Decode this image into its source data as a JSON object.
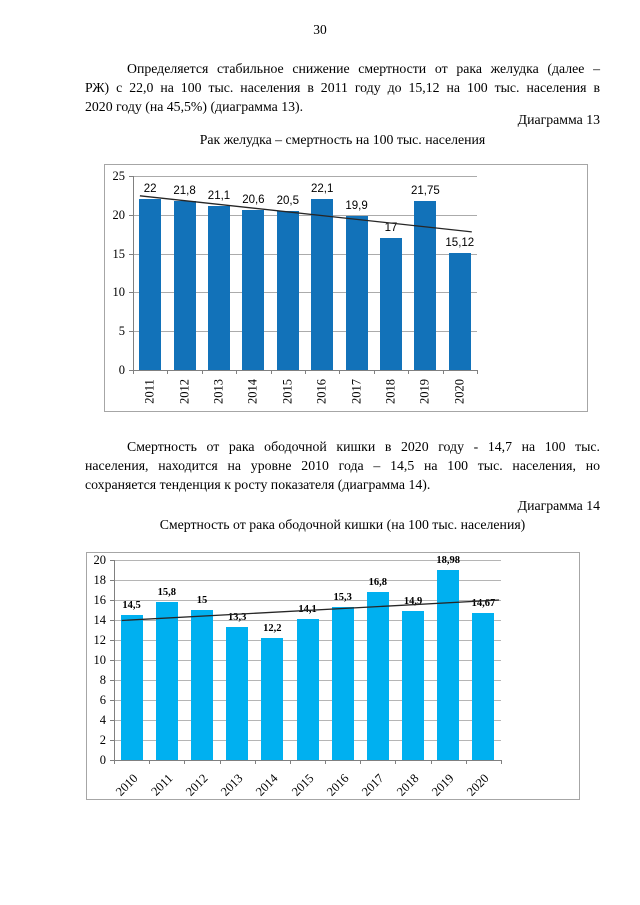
{
  "document": {
    "page_number": "30",
    "paragraphs": [
      {
        "lines": [
          "Определяется стабильное снижение смертности от рака желудка (далее –",
          "РЖ) с 22,0 на 100 тыс. населения в 2011 году до 15,12 на 100 тыс. населения в",
          "2020 году (на 45,5%) (диаграмма 13)."
        ]
      },
      {
        "lines": [
          "Смертность от рака ободочной кишки в 2020 году - 14,7 на 100 тыс.",
          "населения, находится на уровне 2010 года – 14,5 на 100 тыс. населения, но",
          "сохраняется тенденция к росту показателя (диаграмма 14)."
        ]
      }
    ]
  },
  "chart_data": [
    {
      "type": "bar",
      "caption": "Диаграмма 13",
      "title": "Рак желудка – смертность на 100 тыс. населения",
      "categories": [
        "2011",
        "2012",
        "2013",
        "2014",
        "2015",
        "2016",
        "2017",
        "2018",
        "2019",
        "2020"
      ],
      "values": [
        22,
        21.8,
        21.1,
        20.6,
        20.5,
        22.1,
        19.9,
        17,
        21.75,
        15.12
      ],
      "value_labels": [
        "22",
        "21,8",
        "21,1",
        "20,6",
        "20,5",
        "22,1",
        "19,9",
        "17",
        "21,75",
        "15,12"
      ],
      "xlabel": "",
      "ylabel": "",
      "ylim": [
        0,
        25
      ],
      "ytick_step": 5,
      "grid": "on",
      "legend": "none",
      "bar_color": "#1272b9",
      "grid_color": "#ababab",
      "axis_color": "#808080",
      "trendline": {
        "start_value": 22.45,
        "end_value": 17.8,
        "color": "#262626"
      }
    },
    {
      "type": "bar",
      "caption": "Диаграмма 14",
      "title": "Смертность от рака ободочной кишки (на 100 тыс. населения)",
      "categories": [
        "2010",
        "2011",
        "2012",
        "2013",
        "2014",
        "2015",
        "2016",
        "2017",
        "2018",
        "2019",
        "2020"
      ],
      "values": [
        14.5,
        15.8,
        15,
        13.3,
        12.2,
        14.1,
        15.3,
        16.8,
        14.9,
        18.98,
        14.67
      ],
      "value_labels": [
        "14,5",
        "15,8",
        "15",
        "13,3",
        "12,2",
        "14,1",
        "15,3",
        "16,8",
        "14,9",
        "18,98",
        "14,67"
      ],
      "xlabel": "",
      "ylabel": "",
      "ylim": [
        0,
        20
      ],
      "ytick_step": 2,
      "grid": "on",
      "legend": "none",
      "bar_color": "#00b0f0",
      "grid_color": "#b5b5b5",
      "axis_color": "#808080",
      "trendline": {
        "start_value": 13.95,
        "end_value": 16.0,
        "color": "#262626"
      }
    }
  ]
}
